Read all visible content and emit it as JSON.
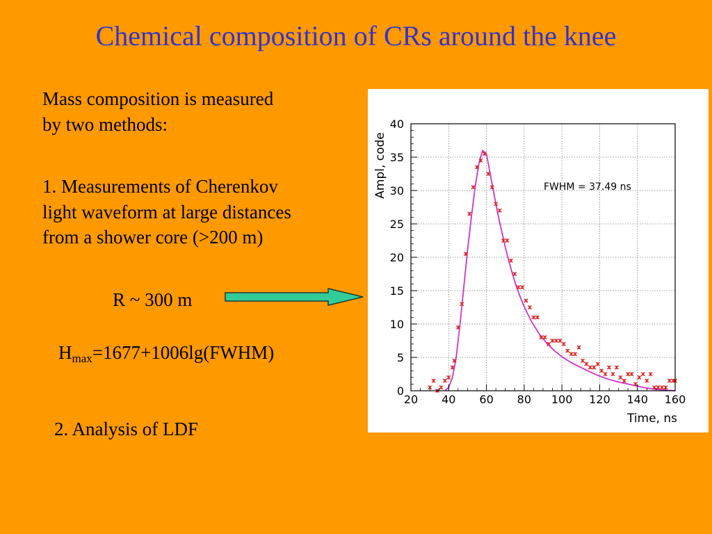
{
  "slide": {
    "title": "Chemical composition of CRs around the knee",
    "intro_line1": "Mass composition is measured",
    "intro_line2": "by two methods:",
    "method1_line1": "1. Measurements of Cherenkov",
    "method1_line2": "light waveform at large distances",
    "method1_line3": "from a shower core (>200 m)",
    "r_label": "R ~ 300 m",
    "formula_prefix": "H",
    "formula_sub": "max",
    "formula_rest": "=1677+1006lg(FWHM)",
    "method2": "2. Analysis of LDF",
    "colors": {
      "background": "#FF9900",
      "title": "#3333CC",
      "arrow_fill": "#33CC99",
      "fit_curve": "#CC33CC",
      "markers": "#DD2222"
    }
  },
  "chart_data": {
    "type": "scatter",
    "xlabel": "Time, ns",
    "ylabel": "Ampl, code",
    "annotation": "FWHM = 37.49 ns",
    "xlim": [
      20,
      160
    ],
    "ylim": [
      0,
      40
    ],
    "xticks": [
      20,
      40,
      60,
      80,
      100,
      120,
      140,
      160
    ],
    "yticks": [
      0,
      5,
      10,
      15,
      20,
      25,
      30,
      35,
      40
    ],
    "grid": true,
    "series": [
      {
        "points": [
          [
            30,
            0.5
          ],
          [
            32,
            1.5
          ],
          [
            34,
            0
          ],
          [
            36,
            0.5
          ],
          [
            38,
            1.5
          ],
          [
            40,
            2.0
          ],
          [
            42,
            3.5
          ],
          [
            43,
            4.5
          ],
          [
            45,
            9.5
          ],
          [
            47,
            13.0
          ],
          [
            49,
            20.5
          ],
          [
            51,
            26.5
          ],
          [
            53,
            30.5
          ],
          [
            55,
            33.5
          ],
          [
            57,
            34.5
          ],
          [
            59,
            35.5
          ],
          [
            61,
            32.5
          ],
          [
            63,
            30.5
          ],
          [
            65,
            28.0
          ],
          [
            67,
            27.0
          ],
          [
            69,
            22.5
          ],
          [
            71,
            22.5
          ],
          [
            73,
            19.5
          ],
          [
            75,
            17.5
          ],
          [
            77,
            15.5
          ],
          [
            79,
            15.5
          ],
          [
            81,
            13.5
          ],
          [
            83,
            12.5
          ],
          [
            85,
            11.0
          ],
          [
            87,
            11.0
          ],
          [
            89,
            8.0
          ],
          [
            91,
            8.0
          ],
          [
            93,
            7.0
          ],
          [
            95,
            7.5
          ],
          [
            97,
            7.5
          ],
          [
            99,
            7.5
          ],
          [
            101,
            7.0
          ],
          [
            103,
            6.0
          ],
          [
            105,
            5.5
          ],
          [
            107,
            5.5
          ],
          [
            109,
            6.5
          ],
          [
            111,
            4.5
          ],
          [
            113,
            4.0
          ],
          [
            115,
            3.5
          ],
          [
            117,
            3.5
          ],
          [
            119,
            4.0
          ],
          [
            121,
            3.0
          ],
          [
            123,
            2.5
          ],
          [
            125,
            3.5
          ],
          [
            127,
            2.5
          ],
          [
            129,
            3.5
          ],
          [
            131,
            2.0
          ],
          [
            133,
            1.5
          ],
          [
            135,
            2.5
          ],
          [
            137,
            2.5
          ],
          [
            139,
            1.0
          ],
          [
            141,
            2.0
          ],
          [
            143,
            2.5
          ],
          [
            145,
            1.5
          ],
          [
            147,
            2.5
          ],
          [
            149,
            0.5
          ],
          [
            151,
            0.5
          ],
          [
            153,
            0.5
          ],
          [
            155,
            0.5
          ],
          [
            157,
            1.5
          ],
          [
            159,
            1.5
          ],
          [
            160,
            1.5
          ]
        ]
      }
    ],
    "fit_curve": [
      [
        38,
        0
      ],
      [
        40,
        0.5
      ],
      [
        42,
        2.0
      ],
      [
        44,
        5.0
      ],
      [
        46,
        10.0
      ],
      [
        48,
        15.5
      ],
      [
        50,
        21.0
      ],
      [
        52,
        26.0
      ],
      [
        54,
        30.5
      ],
      [
        56,
        34.0
      ],
      [
        58,
        36.0
      ],
      [
        60,
        35.5
      ],
      [
        62,
        32.5
      ],
      [
        64,
        29.5
      ],
      [
        66,
        26.5
      ],
      [
        68,
        24.0
      ],
      [
        70,
        21.5
      ],
      [
        72,
        19.3
      ],
      [
        74,
        17.3
      ],
      [
        76,
        15.5
      ],
      [
        78,
        14.0
      ],
      [
        80,
        12.6
      ],
      [
        84,
        10.3
      ],
      [
        88,
        8.5
      ],
      [
        92,
        7.1
      ],
      [
        96,
        6.0
      ],
      [
        100,
        5.1
      ],
      [
        105,
        4.2
      ],
      [
        110,
        3.5
      ],
      [
        115,
        2.8
      ],
      [
        120,
        2.2
      ],
      [
        125,
        1.7
      ],
      [
        130,
        1.3
      ],
      [
        135,
        1.0
      ],
      [
        140,
        0.7
      ],
      [
        145,
        0.4
      ],
      [
        150,
        0.2
      ],
      [
        155,
        0.1
      ],
      [
        160,
        0
      ]
    ]
  }
}
